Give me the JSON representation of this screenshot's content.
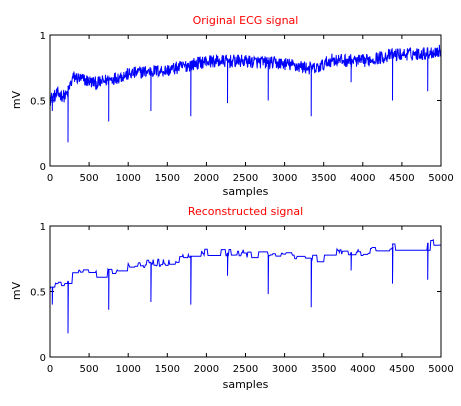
{
  "colors": {
    "title": "#ff0000",
    "line": "#0000ff",
    "axes": "#000000",
    "background": "#ffffff"
  },
  "chart_data": [
    {
      "type": "line",
      "title": "Original ECG signal",
      "xlabel": "samples",
      "ylabel": "mV",
      "xlim": [
        0,
        5000
      ],
      "ylim": [
        0,
        1
      ],
      "xticks": [
        0,
        500,
        1000,
        1500,
        2000,
        2500,
        3000,
        3500,
        4000,
        4500,
        5000
      ],
      "yticks": [
        0,
        0.5,
        1
      ],
      "xtick_labels": [
        "0",
        "500",
        "1000",
        "1500",
        "2000",
        "2500",
        "3000",
        "3500",
        "4000",
        "4500",
        "5000"
      ],
      "ytick_labels": [
        "0",
        "0.5",
        "1"
      ],
      "grid": false,
      "series": [
        {
          "x": [
            0,
            100,
            200,
            230,
            300,
            600,
            700,
            1000,
            1200,
            1500,
            1700,
            2000,
            2500,
            3000,
            3400,
            3600,
            4000,
            4400,
            4800,
            5000
          ],
          "values": [
            0.51,
            0.55,
            0.53,
            0.57,
            0.68,
            0.63,
            0.65,
            0.7,
            0.72,
            0.73,
            0.76,
            0.8,
            0.8,
            0.78,
            0.74,
            0.81,
            0.8,
            0.85,
            0.86,
            0.88
          ]
        }
      ],
      "spikes": [
        {
          "x": 30,
          "y": 0.42
        },
        {
          "x": 230,
          "y": 0.18
        },
        {
          "x": 750,
          "y": 0.34
        },
        {
          "x": 1290,
          "y": 0.42
        },
        {
          "x": 1800,
          "y": 0.38
        },
        {
          "x": 2270,
          "y": 0.48
        },
        {
          "x": 2790,
          "y": 0.5
        },
        {
          "x": 3340,
          "y": 0.38
        },
        {
          "x": 3850,
          "y": 0.64
        },
        {
          "x": 4380,
          "y": 0.5
        },
        {
          "x": 4830,
          "y": 0.57
        }
      ]
    },
    {
      "type": "line",
      "title": "Reconstructed signal",
      "xlabel": "samples",
      "ylabel": "mV",
      "xlim": [
        0,
        5000
      ],
      "ylim": [
        0,
        1
      ],
      "xticks": [
        0,
        500,
        1000,
        1500,
        2000,
        2500,
        3000,
        3500,
        4000,
        4500,
        5000
      ],
      "yticks": [
        0,
        0.5,
        1
      ],
      "xtick_labels": [
        "0",
        "500",
        "1000",
        "1500",
        "2000",
        "2500",
        "3000",
        "3500",
        "4000",
        "4500",
        "5000"
      ],
      "ytick_labels": [
        "0",
        "0.5",
        "1"
      ],
      "grid": false,
      "series": [
        {
          "x": [
            0,
            100,
            200,
            230,
            300,
            600,
            700,
            1000,
            1200,
            1500,
            1700,
            2000,
            2500,
            3000,
            3400,
            3600,
            4000,
            4400,
            4800,
            5000
          ],
          "values": [
            0.52,
            0.56,
            0.54,
            0.58,
            0.66,
            0.63,
            0.65,
            0.69,
            0.71,
            0.73,
            0.76,
            0.8,
            0.79,
            0.77,
            0.75,
            0.8,
            0.8,
            0.84,
            0.87,
            0.88
          ]
        }
      ],
      "spikes": [
        {
          "x": 30,
          "y": 0.4
        },
        {
          "x": 230,
          "y": 0.18
        },
        {
          "x": 750,
          "y": 0.36
        },
        {
          "x": 1290,
          "y": 0.42
        },
        {
          "x": 1800,
          "y": 0.4
        },
        {
          "x": 2270,
          "y": 0.62
        },
        {
          "x": 2790,
          "y": 0.48
        },
        {
          "x": 3340,
          "y": 0.38
        },
        {
          "x": 3850,
          "y": 0.66
        },
        {
          "x": 4380,
          "y": 0.56
        },
        {
          "x": 4830,
          "y": 0.59
        }
      ]
    }
  ]
}
